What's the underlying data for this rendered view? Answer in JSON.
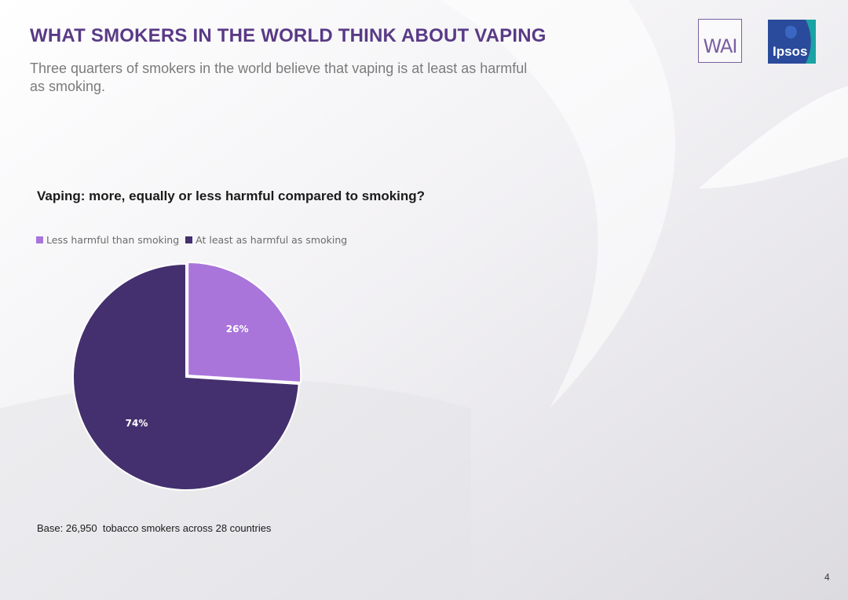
{
  "header": {
    "title": "WHAT SMOKERS IN THE WORLD THINK ABOUT VAPING",
    "subtitle": "Three quarters of smokers in the world believe that vaping is at least as harmful as smoking."
  },
  "logos": {
    "wai": "WAI",
    "ipsos": "Ipsos"
  },
  "chart_data": {
    "type": "pie",
    "title": "Vaping: more, equally or less harmful compared to smoking?",
    "legend_position": "top-left",
    "series": [
      {
        "name": "Less harmful than smoking",
        "value": 26,
        "label": "26%",
        "color": "#a975db"
      },
      {
        "name": "At least as harmful as smoking",
        "value": 74,
        "label": "74%",
        "color": "#44306e"
      }
    ]
  },
  "footer": {
    "base": "Base: 26,950  tobacco smokers across 28 countries",
    "page_number": "4"
  },
  "colors": {
    "title": "#5a3a86",
    "accent_light": "#a975db",
    "accent_dark": "#44306e",
    "ipsos_blue": "#2a4b9b",
    "ipsos_teal": "#1aa3a3"
  }
}
